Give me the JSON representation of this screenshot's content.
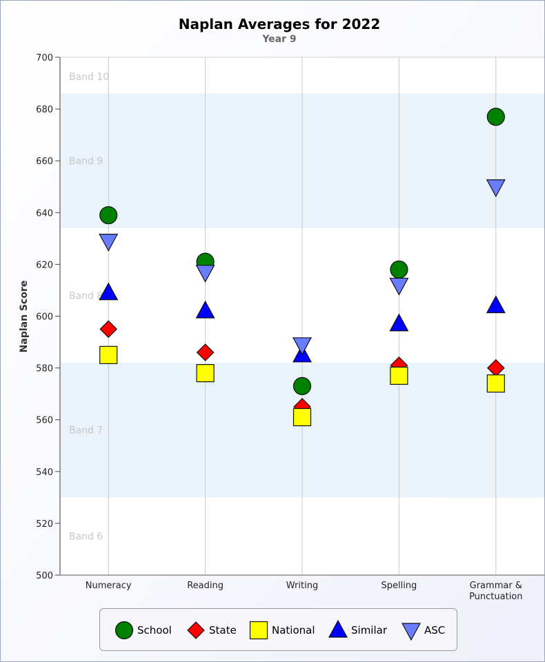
{
  "chart_data": {
    "type": "scatter",
    "title": "Naplan Averages for 2022",
    "subtitle": "Year 9",
    "ylabel": "Naplan Score",
    "xlabel": "",
    "ylim": [
      500,
      700
    ],
    "yticks": [
      500,
      520,
      540,
      560,
      580,
      600,
      620,
      640,
      660,
      680,
      700
    ],
    "grid": "vertical lines at categories",
    "categories": [
      "Numeracy",
      "Reading",
      "Writing",
      "Spelling",
      "Grammar & Punctuation"
    ],
    "category_lines": [
      [
        "Numeracy"
      ],
      [
        "Reading"
      ],
      [
        "Writing"
      ],
      [
        "Spelling"
      ],
      [
        "Grammar &",
        "Punctuation"
      ]
    ],
    "bands": [
      {
        "label": "Band 6",
        "from": 500,
        "to": 530,
        "color": "#ffffff"
      },
      {
        "label": "Band 7",
        "from": 530,
        "to": 582,
        "color": "#eaf3fa"
      },
      {
        "label": "Band 8",
        "from": 582,
        "to": 634,
        "color": "#ffffff"
      },
      {
        "label": "Band 9",
        "from": 634,
        "to": 686,
        "color": "#eaf3fa"
      },
      {
        "label": "Band 10",
        "from": 686,
        "to": 700,
        "color": "#ffffff"
      }
    ],
    "series": [
      {
        "name": "School",
        "marker": "circle",
        "color": "#008000",
        "values": [
          639,
          621,
          573,
          618,
          677
        ]
      },
      {
        "name": "State",
        "marker": "diamond",
        "color": "#ff0000",
        "values": [
          595,
          586,
          565,
          581,
          580
        ]
      },
      {
        "name": "National",
        "marker": "square",
        "color": "#ffff00",
        "values": [
          585,
          578,
          561,
          577,
          574
        ]
      },
      {
        "name": "Similar",
        "marker": "triangle-up",
        "color": "#0000ff",
        "values": [
          609,
          602,
          585,
          597,
          604
        ]
      },
      {
        "name": "ASC",
        "marker": "triangle-down",
        "color": "#6a7cff",
        "values": [
          629,
          617,
          589,
          612,
          650
        ]
      }
    ],
    "legend_position": "bottom-center"
  }
}
